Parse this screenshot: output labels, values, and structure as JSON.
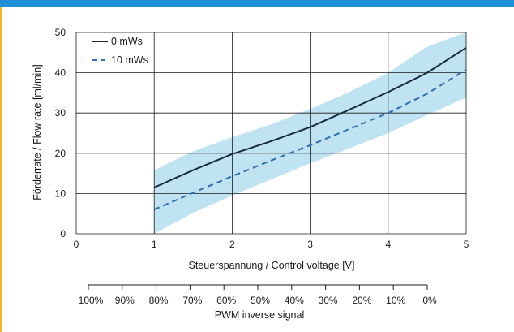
{
  "colors": {
    "accent_bar": "#1f8fd6",
    "left_rule": "#f2b233",
    "band_fill": "#bfe3f1",
    "series_solid": "#1a2a3a",
    "series_dashed": "#2d6fb2",
    "grid": "#1a1a1a"
  },
  "chart_data": {
    "type": "line",
    "xlabel": "Steuerspannung / Control voltage [V]",
    "ylabel": "Förderrate / Flow rate [ml/min]",
    "xlim": [
      0,
      5
    ],
    "ylim": [
      0,
      50
    ],
    "x_ticks": [
      "0",
      "1",
      "2",
      "3",
      "4",
      "5"
    ],
    "y_ticks": [
      "0",
      "10",
      "20",
      "30",
      "40",
      "50"
    ],
    "grid": true,
    "legend_position": "top-left",
    "series": [
      {
        "name": "0 mWs",
        "style": "solid",
        "x": [
          1,
          1.5,
          2,
          2.5,
          3,
          3.5,
          4,
          4.5,
          5
        ],
        "y": [
          11.5,
          15.8,
          19.8,
          23,
          26.5,
          30.8,
          35.2,
          40,
          46.2
        ]
      },
      {
        "name": "10 mWs",
        "style": "dashed",
        "x": [
          1,
          1.5,
          2,
          2.5,
          3,
          3.5,
          4,
          4.5,
          5
        ],
        "y": [
          6,
          10.2,
          14.3,
          18.2,
          22,
          26,
          30,
          34.8,
          40.8
        ]
      }
    ],
    "band": {
      "x": [
        1,
        1.5,
        2,
        2.5,
        3,
        3.5,
        4,
        4.5,
        5
      ],
      "upper": [
        15.8,
        20.5,
        24,
        27.2,
        31,
        35.2,
        40,
        46.5,
        50
      ],
      "lower": [
        0,
        5.2,
        9.5,
        13.5,
        17.5,
        21.2,
        25,
        29.5,
        33.8
      ]
    },
    "secondary_axis": {
      "label": "PWM inverse signal",
      "ticks": [
        "100%",
        "90%",
        "80%",
        "70%",
        "60%",
        "50%",
        "40%",
        "30%",
        "20%",
        "10%",
        "0%"
      ]
    }
  }
}
